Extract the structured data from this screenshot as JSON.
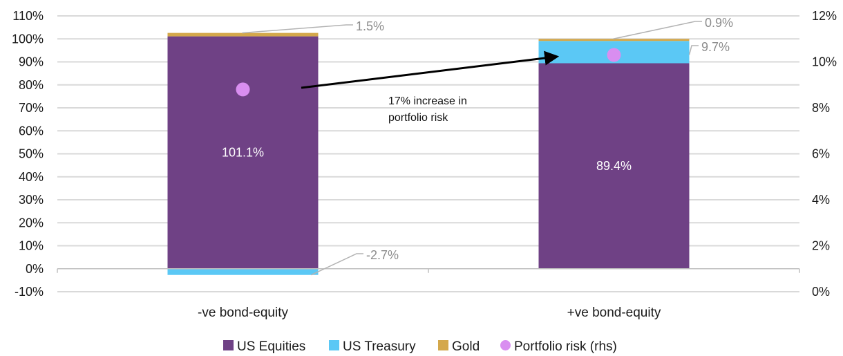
{
  "chart_data": {
    "type": "bar",
    "stacked": true,
    "categories": [
      "-ve bond-equity",
      "+ve bond-equity"
    ],
    "series": [
      {
        "name": "US Equities",
        "color": "#6f4185",
        "values": [
          101.1,
          89.4
        ],
        "labels": [
          "101.1%",
          "89.4%"
        ]
      },
      {
        "name": "US Treasury",
        "color": "#5bc8f5",
        "values": [
          -2.7,
          9.7
        ],
        "labels": [
          "-2.7%",
          "9.7%"
        ]
      },
      {
        "name": "Gold",
        "color": "#d4a84b",
        "values": [
          1.5,
          0.9
        ],
        "labels": [
          "1.5%",
          "0.9%"
        ]
      }
    ],
    "overlay_series": {
      "name": "Portfolio risk (rhs)",
      "type": "scatter",
      "axis": "right",
      "color": "#d98ef0",
      "values": [
        8.8,
        10.3
      ]
    },
    "left_axis": {
      "ylim": [
        -10,
        110
      ],
      "ticks": [
        -10,
        0,
        10,
        20,
        30,
        40,
        50,
        60,
        70,
        80,
        90,
        100,
        110
      ],
      "tick_labels": [
        "-10%",
        "0%",
        "10%",
        "20%",
        "30%",
        "40%",
        "50%",
        "60%",
        "70%",
        "80%",
        "90%",
        "100%",
        "110%"
      ]
    },
    "right_axis": {
      "ylim": [
        0,
        12
      ],
      "ticks": [
        0,
        2,
        4,
        6,
        8,
        10,
        12
      ],
      "tick_labels": [
        "0%",
        "2%",
        "4%",
        "6%",
        "8%",
        "10%",
        "12%"
      ]
    },
    "grid": true,
    "legend_position": "bottom",
    "annotation": {
      "lines": [
        "17% increase in",
        "portfolio risk"
      ]
    },
    "xlabel": "",
    "ylabel": ""
  }
}
